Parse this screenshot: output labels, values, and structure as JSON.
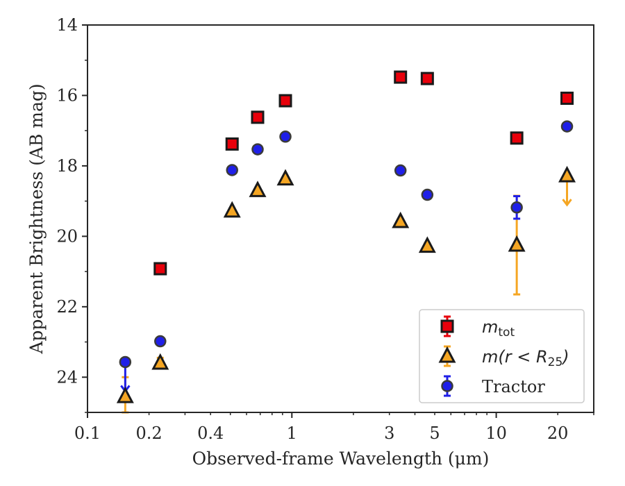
{
  "chart_data": {
    "type": "scatter",
    "xlabel": "Observed-frame Wavelength (μm)",
    "ylabel": "Apparent Brightness (AB mag)",
    "xscale": "log",
    "xlim": [
      0.1,
      30
    ],
    "ylim": [
      25,
      14
    ],
    "y_inverted": true,
    "grid": false,
    "legend_position": "lower-right",
    "x_ticks": [
      0.1,
      0.2,
      0.4,
      1,
      3,
      5,
      10,
      20
    ],
    "x_tick_labels": [
      "0.1",
      "0.2",
      "0.4",
      "1",
      "3",
      "5",
      "10",
      "20"
    ],
    "y_ticks": [
      14,
      16,
      18,
      20,
      22,
      24
    ],
    "y_tick_labels": [
      "14",
      "16",
      "18",
      "20",
      "22",
      "24"
    ],
    "series": [
      {
        "name": "m_tot",
        "legend_base": "m",
        "legend_sub": "tot",
        "marker": "square",
        "face_color": "#e8000b",
        "edge_color": "#1a1a1a",
        "err_color": "#e8000b",
        "points": [
          {
            "x": 0.227,
            "y": 20.92,
            "err": 0
          },
          {
            "x": 0.51,
            "y": 17.38,
            "err": 0
          },
          {
            "x": 0.68,
            "y": 16.62,
            "err": 0
          },
          {
            "x": 0.93,
            "y": 16.15,
            "err": 0
          },
          {
            "x": 3.4,
            "y": 15.48,
            "err": 0
          },
          {
            "x": 4.6,
            "y": 15.52,
            "err": 0
          },
          {
            "x": 12.6,
            "y": 17.21,
            "err": 0
          },
          {
            "x": 22.2,
            "y": 16.08,
            "err": 0
          }
        ]
      },
      {
        "name": "m(r < R_25)",
        "legend_base": "m(r < R",
        "legend_sub": "25",
        "legend_tail": ")",
        "marker": "triangle",
        "face_color": "#f5a623",
        "edge_color": "#1a1a1a",
        "err_color": "#f5a623",
        "points": [
          {
            "x": 0.153,
            "y": 24.55,
            "err": 0.55,
            "limit": "none"
          },
          {
            "x": 0.227,
            "y": 23.6,
            "err": 0.15,
            "limit": "none"
          },
          {
            "x": 0.51,
            "y": 19.28,
            "err": 0
          },
          {
            "x": 0.68,
            "y": 18.7,
            "err": 0
          },
          {
            "x": 0.93,
            "y": 18.37,
            "err": 0
          },
          {
            "x": 3.4,
            "y": 19.58,
            "err": 0
          },
          {
            "x": 4.6,
            "y": 20.28,
            "err": 0.08
          },
          {
            "x": 12.6,
            "y": 20.25,
            "err": 1.4
          },
          {
            "x": 22.2,
            "y": 18.28,
            "err": 0,
            "limit": "upper"
          }
        ]
      },
      {
        "name": "Tractor",
        "marker": "circle",
        "face_color": "#1f1fe8",
        "edge_color": "#3a3a3a",
        "err_color": "#1f1fe8",
        "points": [
          {
            "x": 0.153,
            "y": 23.57,
            "err": 0,
            "limit": "upper"
          },
          {
            "x": 0.227,
            "y": 22.98,
            "err": 0
          },
          {
            "x": 0.51,
            "y": 18.12,
            "err": 0
          },
          {
            "x": 0.68,
            "y": 17.53,
            "err": 0
          },
          {
            "x": 0.93,
            "y": 17.17,
            "err": 0
          },
          {
            "x": 3.4,
            "y": 18.13,
            "err": 0
          },
          {
            "x": 4.6,
            "y": 18.82,
            "err": 0
          },
          {
            "x": 12.6,
            "y": 19.18,
            "err": 0.32
          },
          {
            "x": 22.2,
            "y": 16.88,
            "err": 0
          }
        ]
      }
    ]
  }
}
